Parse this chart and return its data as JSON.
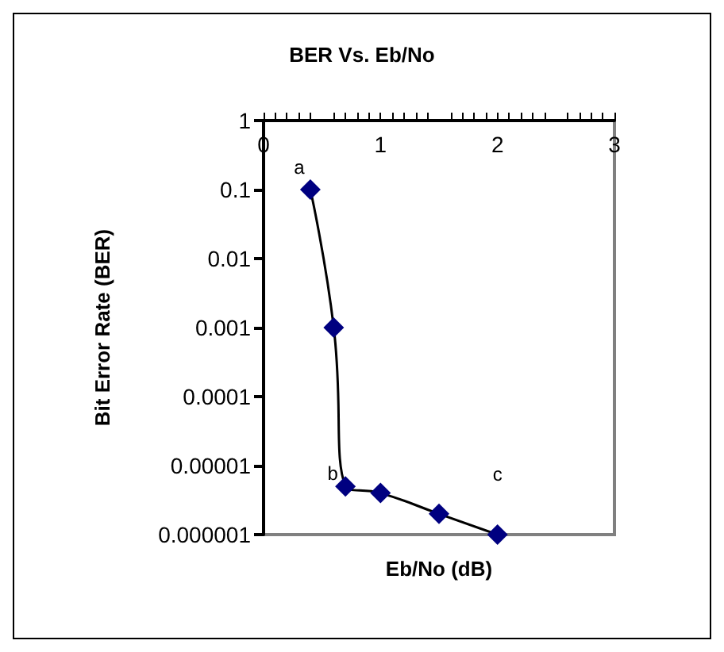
{
  "chart_data": {
    "type": "line",
    "title": "BER Vs. Eb/No",
    "xlabel": "Eb/No (dB)",
    "ylabel": "Bit Error Rate (BER)",
    "x": [
      0.4,
      0.6,
      0.7,
      1.0,
      1.5,
      2.0
    ],
    "series": [
      {
        "color": "#000080",
        "values": [
          0.1,
          0.001,
          5e-06,
          4e-06,
          2e-06,
          1e-06
        ]
      }
    ],
    "xlim": [
      0,
      3
    ],
    "xticks": [
      0,
      1,
      2,
      3
    ],
    "ylim": [
      1e-06,
      1
    ],
    "yticks": [
      {
        "value": 1e-06,
        "label": "0.000001"
      },
      {
        "value": 1e-05,
        "label": "0.00001"
      },
      0.0001,
      0.001,
      0.01,
      0.1,
      1
    ],
    "log": "y",
    "grid": false,
    "marker": "diamond",
    "line_style": "solid",
    "annotations": [
      {
        "text": "a",
        "x": 0.4,
        "y": 0.1
      },
      {
        "text": "b",
        "x": 0.7,
        "y": 5e-06
      },
      {
        "text": "c",
        "x": 2.0,
        "y": 1e-06
      }
    ]
  }
}
